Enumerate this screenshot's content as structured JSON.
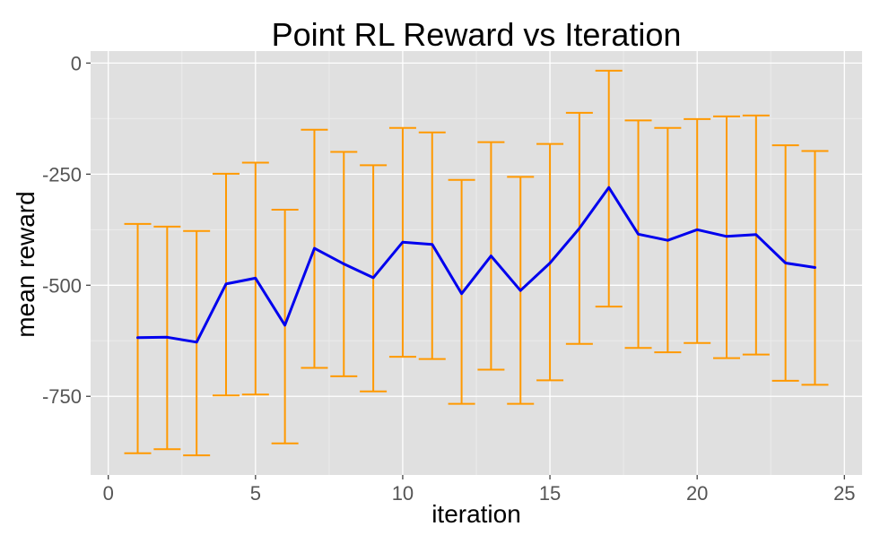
{
  "chart_data": {
    "type": "line",
    "title": "Point RL Reward vs Iteration",
    "xlabel": "iteration",
    "ylabel": "mean reward",
    "xlim": [
      -0.6,
      25.6
    ],
    "ylim": [
      -927,
      27
    ],
    "x_ticks": [
      0,
      5,
      10,
      15,
      20,
      25
    ],
    "x_tick_labels": [
      "0",
      "5",
      "10",
      "15",
      "20",
      "25"
    ],
    "y_ticks": [
      0,
      -250,
      -500,
      -750
    ],
    "y_tick_labels": [
      "0",
      "-250",
      "-500",
      "-750"
    ],
    "grid": true,
    "legend": "none",
    "colors": {
      "panel_background": "#e0e0e0",
      "grid_major": "#ffffff",
      "grid_minor": "#ebebeb",
      "line": "#0000ee",
      "error_bar": "#ff9900"
    },
    "series": [
      {
        "x": [
          1,
          2,
          3,
          4,
          5,
          6,
          7,
          8,
          9,
          10,
          11,
          12,
          13,
          14,
          15,
          16,
          17,
          18,
          19,
          20,
          21,
          22,
          23,
          24
        ],
        "y": [
          -618,
          -617,
          -628,
          -497,
          -484,
          -590,
          -417,
          -452,
          -483,
          -403,
          -408,
          -519,
          -434,
          -512,
          -450,
          -372,
          -280,
          -385,
          -399,
          -375,
          -390,
          -386,
          -450,
          -460
        ],
        "y_lower": [
          -878,
          -869,
          -883,
          -748,
          -746,
          -856,
          -686,
          -705,
          -739,
          -661,
          -666,
          -767,
          -690,
          -767,
          -714,
          -632,
          -548,
          -641,
          -651,
          -630,
          -664,
          -656,
          -715,
          -724
        ],
        "y_upper": [
          -362,
          -368,
          -378,
          -249,
          -224,
          -330,
          -150,
          -200,
          -230,
          -146,
          -156,
          -263,
          -178,
          -256,
          -182,
          -112,
          -17,
          -129,
          -146,
          -126,
          -120,
          -118,
          -185,
          -198
        ]
      }
    ]
  }
}
